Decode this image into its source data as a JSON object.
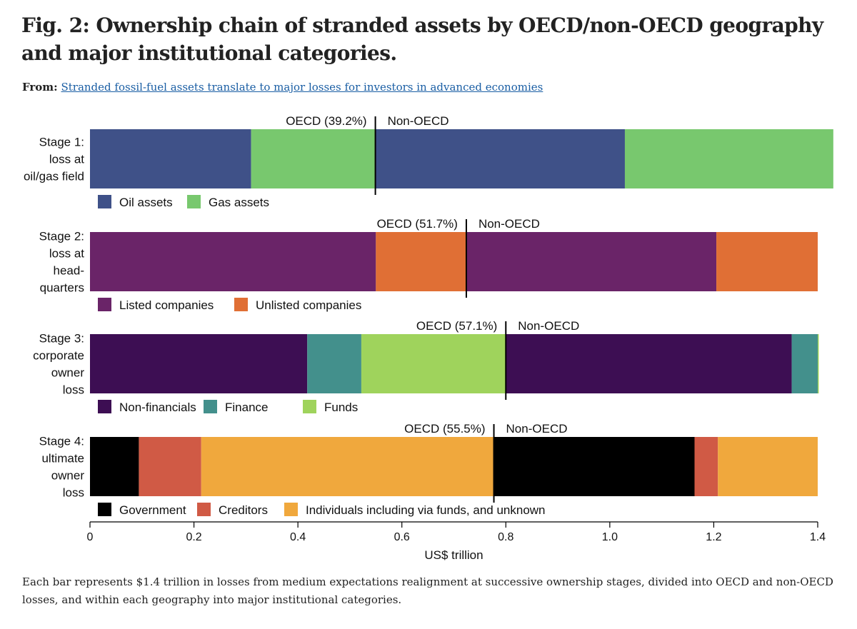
{
  "header": {
    "title": "Fig. 2: Ownership chain of stranded assets by OECD/non-OECD geography and major institutional categories.",
    "from_label": "From:",
    "from_link": "Stranded fossil-fuel assets translate to major losses for investors in advanced economies"
  },
  "caption": "Each bar represents $1.4 trillion in losses from medium expectations realignment at successive ownership stages, divided into OECD and non-OECD losses, and within each geography into major institutional categories.",
  "chart_data": {
    "type": "bar",
    "orientation": "horizontal-stacked",
    "xlabel": "US$ trillion",
    "xlim": [
      0,
      1.4
    ],
    "xticks": [
      0,
      0.2,
      0.4,
      0.6,
      0.8,
      1.0,
      1.2,
      1.4
    ],
    "xtick_labels": [
      "0",
      "0.2",
      "0.4",
      "0.6",
      "0.8",
      "1.0",
      "1.2",
      "1.4"
    ],
    "non_oecd_label": "Non-OECD",
    "stages": [
      {
        "label_lines": [
          "Stage 1:",
          "loss at",
          "oil/gas field"
        ],
        "oecd_label": "OECD (39.2%)",
        "oecd_split": 0.549,
        "segments": [
          {
            "category": "Oil assets",
            "value": 0.31,
            "color": "#3f5188"
          },
          {
            "category": "Gas assets",
            "value": 0.239,
            "color": "#78c86e"
          },
          {
            "category": "Oil assets",
            "value": 0.48,
            "color": "#3f5188"
          },
          {
            "category": "Gas assets",
            "value": 0.401,
            "color": "#78c86e"
          }
        ],
        "legend": [
          {
            "label": "Oil assets",
            "color": "#3f5188"
          },
          {
            "label": "Gas assets",
            "color": "#78c86e"
          }
        ]
      },
      {
        "label_lines": [
          "Stage 2:",
          "loss at",
          "head-",
          "quarters"
        ],
        "oecd_label": "OECD (51.7%)",
        "oecd_split": 0.724,
        "segments": [
          {
            "category": "Listed companies",
            "value": 0.55,
            "color": "#6a2468"
          },
          {
            "category": "Unlisted companies",
            "value": 0.174,
            "color": "#e06f35"
          },
          {
            "category": "Listed companies",
            "value": 0.481,
            "color": "#6a2468"
          },
          {
            "category": "Unlisted companies",
            "value": 0.195,
            "color": "#e06f35"
          }
        ],
        "legend": [
          {
            "label": "Listed companies",
            "color": "#6a2468"
          },
          {
            "label": "Unlisted companies",
            "color": "#e06f35"
          }
        ]
      },
      {
        "label_lines": [
          "Stage 3:",
          "corporate",
          "owner",
          "loss"
        ],
        "oecd_label": "OECD (57.1%)",
        "oecd_split": 0.8,
        "segments": [
          {
            "category": "Non-financials",
            "value": 0.418,
            "color": "#3d0e53"
          },
          {
            "category": "Finance",
            "value": 0.104,
            "color": "#43908c"
          },
          {
            "category": "Funds",
            "value": 0.278,
            "color": "#9fd35c"
          },
          {
            "category": "Non-financials",
            "value": 0.55,
            "color": "#3d0e53"
          },
          {
            "category": "Finance",
            "value": 0.05,
            "color": "#43908c"
          },
          {
            "category": "Funds",
            "value": 0.002,
            "color": "#9fd35c"
          }
        ],
        "legend": [
          {
            "label": "Non-financials",
            "color": "#3d0e53"
          },
          {
            "label": "Finance",
            "color": "#43908c"
          },
          {
            "label": "Funds",
            "color": "#9fd35c"
          }
        ]
      },
      {
        "label_lines": [
          "Stage 4:",
          "ultimate",
          "owner",
          "loss"
        ],
        "oecd_label": "OECD (55.5%)",
        "oecd_split": 0.777,
        "segments": [
          {
            "category": "Government",
            "value": 0.094,
            "color": "#000000"
          },
          {
            "category": "Creditors",
            "value": 0.12,
            "color": "#d05a45"
          },
          {
            "category": "Individuals including via funds, and unknown",
            "value": 0.563,
            "color": "#f0a83d"
          },
          {
            "category": "Government",
            "value": 0.386,
            "color": "#000000"
          },
          {
            "category": "Creditors",
            "value": 0.045,
            "color": "#d05a45"
          },
          {
            "category": "Individuals including via funds, and unknown",
            "value": 0.192,
            "color": "#f0a83d"
          }
        ],
        "legend": [
          {
            "label": "Government",
            "color": "#000000"
          },
          {
            "label": "Creditors",
            "color": "#d05a45"
          },
          {
            "label": "Individuals including via funds, and unknown",
            "color": "#f0a83d"
          }
        ]
      }
    ]
  }
}
